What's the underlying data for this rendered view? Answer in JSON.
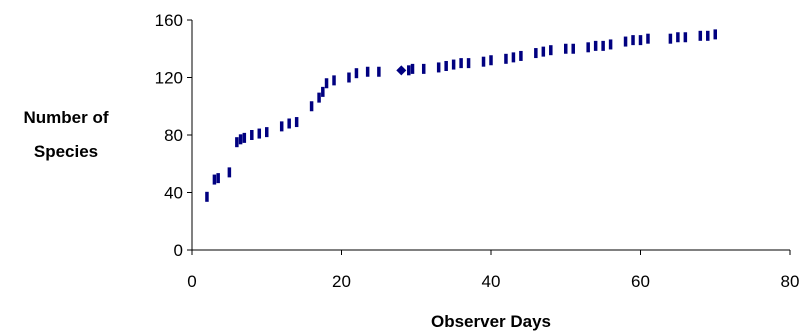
{
  "chart_data": {
    "type": "scatter",
    "title": "",
    "xlabel": "Observer Days",
    "ylabel_lines": [
      "Number of",
      "Species"
    ],
    "xlim": [
      0,
      80
    ],
    "ylim": [
      0,
      160
    ],
    "x_ticks": [
      0,
      20,
      40,
      60,
      80
    ],
    "y_ticks": [
      0,
      40,
      80,
      120,
      160
    ],
    "x_tick_labels": [
      "0",
      "20",
      "40",
      "60",
      "80"
    ],
    "y_tick_labels": [
      "0",
      "40",
      "80",
      "120",
      "160"
    ],
    "grid": false,
    "legend": "none",
    "marker_color": "#000080",
    "marker_shape": "dash",
    "highlight_marker_shape": "diamond",
    "series": [
      {
        "x": [
          2,
          3,
          3.5,
          5,
          6,
          6.5,
          7,
          8,
          9,
          10,
          12,
          13,
          14,
          16,
          17,
          17.5,
          18,
          19,
          21,
          22,
          23.5,
          25,
          29,
          29.5,
          31,
          33,
          34,
          35,
          36,
          37,
          39,
          40,
          42,
          43,
          44,
          46,
          47,
          48,
          50,
          51,
          53,
          54,
          55,
          56,
          58,
          59,
          60,
          61,
          64,
          65,
          66,
          68,
          69,
          70
        ],
        "y": [
          37,
          49,
          50,
          54,
          75,
          77,
          78,
          80,
          81,
          82,
          86,
          88,
          89,
          100,
          106,
          110,
          116,
          118,
          120,
          123,
          124,
          124,
          125,
          126,
          126,
          127,
          128,
          129,
          130,
          130,
          131,
          132,
          133,
          134,
          135,
          137,
          138,
          139,
          140,
          140,
          141,
          142,
          142,
          143,
          145,
          146,
          146,
          147,
          147,
          148,
          148,
          149,
          149,
          150
        ]
      }
    ],
    "highlight_point": {
      "x": 28,
      "y": 125
    }
  }
}
